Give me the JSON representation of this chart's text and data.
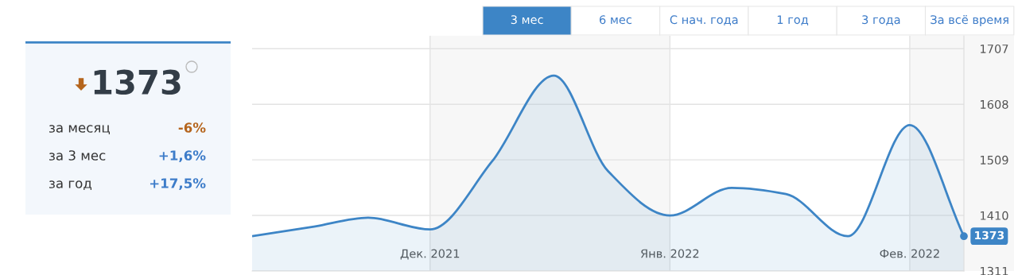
{
  "chart_data": [
    {
      "type": "other",
      "annotations": [
        "1373",
        "за месяц",
        "-6%",
        "за 3 мес",
        "+1,6%",
        "за год",
        "+17,5%"
      ]
    },
    {
      "type": "area",
      "color": "#3d85c6",
      "x": [
        "2021-11-08",
        "2021-11-16",
        "2021-11-23",
        "2021-12-01",
        "2021-12-09",
        "2021-12-17",
        "2021-12-24",
        "2022-01-01",
        "2022-01-09",
        "2022-01-16",
        "2022-01-24",
        "2022-02-01",
        "2022-02-08"
      ],
      "values": [
        1373,
        1390,
        1406,
        1385,
        1506,
        1659,
        1489,
        1410,
        1459,
        1448,
        1373,
        1571,
        1373
      ],
      "value_labels": [
        null,
        null,
        null,
        null,
        null,
        null,
        null,
        null,
        null,
        null,
        null,
        null,
        "1373"
      ],
      "xlim": [
        "2021-11-08",
        "2022-02-08"
      ],
      "ylim": [
        1311,
        1730
      ],
      "xticks": [
        {
          "value": "2021-12-01",
          "label": "Дек. 2021"
        },
        {
          "value": "2022-01-01",
          "label": "Янв. 2022"
        },
        {
          "value": "2022-02-01",
          "label": "Фев. 2022"
        }
      ],
      "yticks": [
        1311,
        1410,
        1509,
        1608,
        1707
      ],
      "grid": true,
      "bands": [
        {
          "axis": "x",
          "from": "2021-12-01",
          "to": "2022-01-01",
          "color": "#f7f7f7"
        },
        {
          "axis": "x",
          "from": "2022-02-01",
          "to": "2022-02-08",
          "color": "#f7f7f7"
        }
      ],
      "annotations": [
        "3 мес",
        "6 мес",
        "С нач. года",
        "1 год",
        "3 года",
        "За всё время"
      ]
    }
  ]
}
